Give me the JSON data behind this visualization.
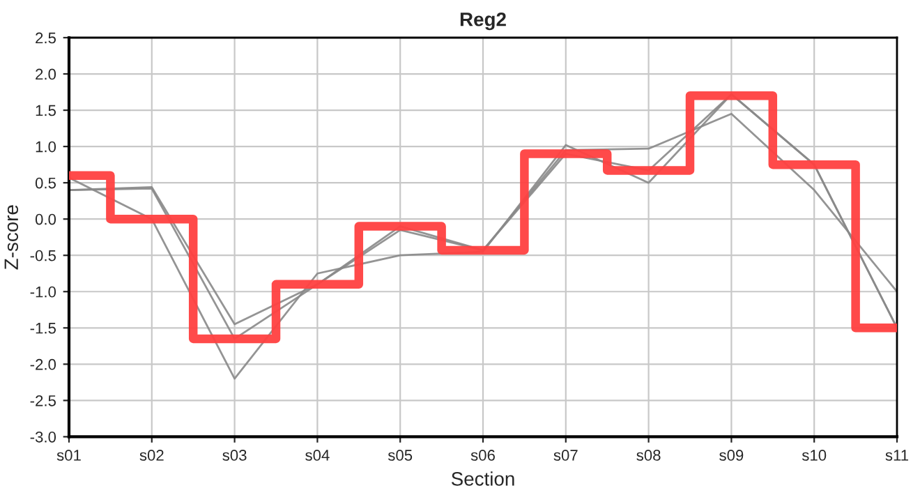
{
  "chart_data": {
    "type": "line",
    "title": "Reg2",
    "xlabel": "Section",
    "ylabel": "Z-score",
    "categories": [
      "s01",
      "s02",
      "s03",
      "s04",
      "s05",
      "s06",
      "s07",
      "s08",
      "s09",
      "s10",
      "s11"
    ],
    "series": [
      {
        "color": "#888888",
        "values": [
          0.4,
          0.42,
          -1.65,
          -0.9,
          -0.1,
          -0.43,
          0.9,
          0.67,
          1.72,
          0.75,
          -1.5
        ]
      },
      {
        "color": "#888888",
        "values": [
          0.4,
          0.44,
          -1.45,
          -0.9,
          -0.15,
          -0.43,
          0.95,
          0.97,
          1.45,
          0.4,
          -1.0
        ]
      },
      {
        "color": "#888888",
        "values": [
          0.57,
          0.0,
          -2.2,
          -0.75,
          -0.5,
          -0.45,
          1.02,
          0.5,
          1.72,
          0.75,
          -1.5
        ]
      },
      {
        "type": "step",
        "color": "#ff4040",
        "values": [
          0.6,
          0.0,
          -1.65,
          -0.9,
          -0.1,
          -0.43,
          0.9,
          0.67,
          1.7,
          0.75,
          -1.5
        ]
      }
    ],
    "ylim": [
      -3.0,
      2.5
    ],
    "yticks": [
      {
        "value": -3.0,
        "label": "-3.0"
      },
      {
        "value": -2.5,
        "label": "-2.5"
      },
      {
        "value": -2.0,
        "label": "-2.0"
      },
      {
        "value": -1.5,
        "label": "-1.5"
      },
      {
        "value": -1.0,
        "label": "-1.0"
      },
      {
        "value": -0.5,
        "label": "-0.5"
      },
      {
        "value": 0.0,
        "label": "0.0"
      },
      {
        "value": 0.5,
        "label": "0.5"
      },
      {
        "value": 1.0,
        "label": "1.0"
      },
      {
        "value": 1.5,
        "label": "1.5"
      },
      {
        "value": 2.0,
        "label": "2.0"
      },
      {
        "value": 2.5,
        "label": "2.5"
      }
    ],
    "grid": true,
    "legend": false
  }
}
